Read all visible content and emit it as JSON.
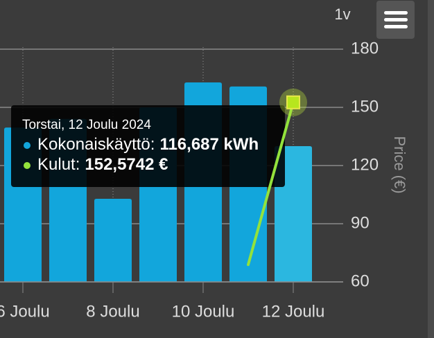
{
  "chart_data": {
    "type": "bar-line",
    "range_button": "1v",
    "y2_label": "Price (€)",
    "categories": [
      "6 Joulu",
      null,
      "8 Joulu",
      null,
      "10 Joulu",
      null,
      "12 Joulu"
    ],
    "ylim": [
      0,
      200
    ],
    "y2lim": [
      60,
      180
    ],
    "y2ticks": [
      60,
      90,
      120,
      150,
      180
    ],
    "grid": true,
    "series": [
      {
        "type": "bar",
        "color": "#12a6dc",
        "hover_color": "#2bb7e0",
        "values": [
          132.7,
          140,
          71.4,
          150,
          171.4,
          167.9,
          116.687
        ],
        "value_labels": [
          null,
          null,
          null,
          null,
          null,
          null,
          "116,687 kWh"
        ]
      },
      {
        "type": "line",
        "axis": "y2",
        "color": "#93e23c",
        "values": [
          null,
          null,
          null,
          null,
          null,
          68.9,
          152.5742
        ],
        "value_labels": [
          null,
          null,
          null,
          null,
          null,
          null,
          "152,5742 €"
        ]
      }
    ],
    "tooltip": {
      "header": "Torstai, 12 Joulu 2024",
      "rows": [
        "Kokonaiskäyttö:",
        "Kulut:"
      ],
      "index": 6
    }
  }
}
